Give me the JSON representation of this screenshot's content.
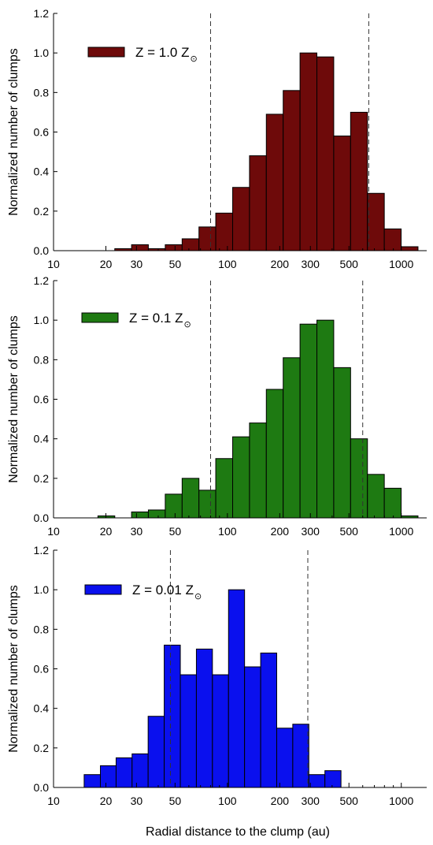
{
  "figure": {
    "shared_xlabel": "Radial distance to the clump (au)"
  },
  "chart_data": [
    {
      "type": "bar",
      "xscale": "log",
      "xlim": [
        10,
        1400
      ],
      "ylim": [
        0,
        1.2
      ],
      "xticks": [
        10,
        20,
        30,
        50,
        100,
        200,
        300,
        500,
        1000
      ],
      "yticks": [
        "0.0",
        "0.2",
        "0.4",
        "0.6",
        "0.8",
        "1.0",
        "1.2"
      ],
      "xlabel": "",
      "ylabel": "Normalized number of clumps",
      "legend": {
        "label": "Z = 1.0 Z",
        "symbol": "⊙",
        "position": "top-left"
      },
      "color": "#6e0a0a",
      "vlines": [
        80,
        650
      ],
      "bins": [
        {
          "x0": 18.0,
          "x1": 22.5,
          "value": 0.0
        },
        {
          "x0": 22.5,
          "x1": 28.1,
          "value": 0.01
        },
        {
          "x0": 28.1,
          "x1": 35.1,
          "value": 0.03
        },
        {
          "x0": 35.1,
          "x1": 43.9,
          "value": 0.01
        },
        {
          "x0": 43.9,
          "x1": 54.9,
          "value": 0.03
        },
        {
          "x0": 54.9,
          "x1": 68.6,
          "value": 0.06
        },
        {
          "x0": 68.6,
          "x1": 85.7,
          "value": 0.12
        },
        {
          "x0": 85.7,
          "x1": 107.2,
          "value": 0.19
        },
        {
          "x0": 107.2,
          "x1": 134.0,
          "value": 0.32
        },
        {
          "x0": 134.0,
          "x1": 167.4,
          "value": 0.48
        },
        {
          "x0": 167.4,
          "x1": 209.3,
          "value": 0.69
        },
        {
          "x0": 209.3,
          "x1": 261.6,
          "value": 0.81
        },
        {
          "x0": 261.6,
          "x1": 327.0,
          "value": 1.0
        },
        {
          "x0": 327.0,
          "x1": 408.8,
          "value": 0.98
        },
        {
          "x0": 408.8,
          "x1": 511.0,
          "value": 0.58
        },
        {
          "x0": 511.0,
          "x1": 638.8,
          "value": 0.7
        },
        {
          "x0": 638.8,
          "x1": 798.5,
          "value": 0.29
        },
        {
          "x0": 798.5,
          "x1": 998.1,
          "value": 0.11
        },
        {
          "x0": 998.1,
          "x1": 1247.6,
          "value": 0.02
        }
      ]
    },
    {
      "type": "bar",
      "xscale": "log",
      "xlim": [
        10,
        1400
      ],
      "ylim": [
        0,
        1.2
      ],
      "xticks": [
        10,
        20,
        30,
        50,
        100,
        200,
        300,
        500,
        1000
      ],
      "yticks": [
        "0.0",
        "0.2",
        "0.4",
        "0.6",
        "0.8",
        "1.0",
        "1.2"
      ],
      "xlabel": "",
      "ylabel": "Normalized number of clumps",
      "legend": {
        "label": "Z = 0.1 Z",
        "symbol": "⊙",
        "position": "top-left"
      },
      "color": "#1e7a12",
      "vlines": [
        80,
        600
      ],
      "bins": [
        {
          "x0": 18.0,
          "x1": 22.5,
          "value": 0.01
        },
        {
          "x0": 22.5,
          "x1": 28.1,
          "value": 0.0
        },
        {
          "x0": 28.1,
          "x1": 35.1,
          "value": 0.03
        },
        {
          "x0": 35.1,
          "x1": 43.9,
          "value": 0.04
        },
        {
          "x0": 43.9,
          "x1": 54.9,
          "value": 0.12
        },
        {
          "x0": 54.9,
          "x1": 68.6,
          "value": 0.2
        },
        {
          "x0": 68.6,
          "x1": 85.7,
          "value": 0.14
        },
        {
          "x0": 85.7,
          "x1": 107.2,
          "value": 0.3
        },
        {
          "x0": 107.2,
          "x1": 134.0,
          "value": 0.41
        },
        {
          "x0": 134.0,
          "x1": 167.4,
          "value": 0.48
        },
        {
          "x0": 167.4,
          "x1": 209.3,
          "value": 0.65
        },
        {
          "x0": 209.3,
          "x1": 261.6,
          "value": 0.81
        },
        {
          "x0": 261.6,
          "x1": 327.0,
          "value": 0.98
        },
        {
          "x0": 327.0,
          "x1": 408.8,
          "value": 1.0
        },
        {
          "x0": 408.8,
          "x1": 511.0,
          "value": 0.76
        },
        {
          "x0": 511.0,
          "x1": 638.8,
          "value": 0.4
        },
        {
          "x0": 638.8,
          "x1": 798.5,
          "value": 0.22
        },
        {
          "x0": 798.5,
          "x1": 998.1,
          "value": 0.15
        },
        {
          "x0": 998.1,
          "x1": 1247.6,
          "value": 0.01
        }
      ]
    },
    {
      "type": "bar",
      "xscale": "log",
      "xlim": [
        10,
        1400
      ],
      "ylim": [
        0,
        1.2
      ],
      "xticks": [
        10,
        20,
        30,
        50,
        100,
        200,
        300,
        500,
        1000
      ],
      "yticks": [
        "0.0",
        "0.2",
        "0.4",
        "0.6",
        "0.8",
        "1.0",
        "1.2"
      ],
      "xlabel": "Radial distance to the clump (au)",
      "ylabel": "Normalized number of clumps",
      "legend": {
        "label": "Z = 0.01 Z",
        "symbol": "⊙",
        "position": "top-left"
      },
      "color": "#0a10ee",
      "vlines": [
        47,
        290
      ],
      "bins": [
        {
          "x0": 15.0,
          "x1": 18.6,
          "value": 0.065
        },
        {
          "x0": 18.6,
          "x1": 22.9,
          "value": 0.11
        },
        {
          "x0": 22.9,
          "x1": 28.3,
          "value": 0.15
        },
        {
          "x0": 28.3,
          "x1": 35.0,
          "value": 0.17
        },
        {
          "x0": 35.0,
          "x1": 43.3,
          "value": 0.36
        },
        {
          "x0": 43.3,
          "x1": 53.6,
          "value": 0.72
        },
        {
          "x0": 53.6,
          "x1": 66.3,
          "value": 0.57
        },
        {
          "x0": 66.3,
          "x1": 82.0,
          "value": 0.7
        },
        {
          "x0": 82.0,
          "x1": 101.5,
          "value": 0.57
        },
        {
          "x0": 101.5,
          "x1": 125.5,
          "value": 1.0
        },
        {
          "x0": 125.5,
          "x1": 155.3,
          "value": 0.61
        },
        {
          "x0": 155.3,
          "x1": 192.1,
          "value": 0.68
        },
        {
          "x0": 192.1,
          "x1": 237.6,
          "value": 0.3
        },
        {
          "x0": 237.6,
          "x1": 294.0,
          "value": 0.32
        },
        {
          "x0": 294.0,
          "x1": 363.7,
          "value": 0.065
        },
        {
          "x0": 363.7,
          "x1": 450.0,
          "value": 0.085
        }
      ]
    }
  ]
}
